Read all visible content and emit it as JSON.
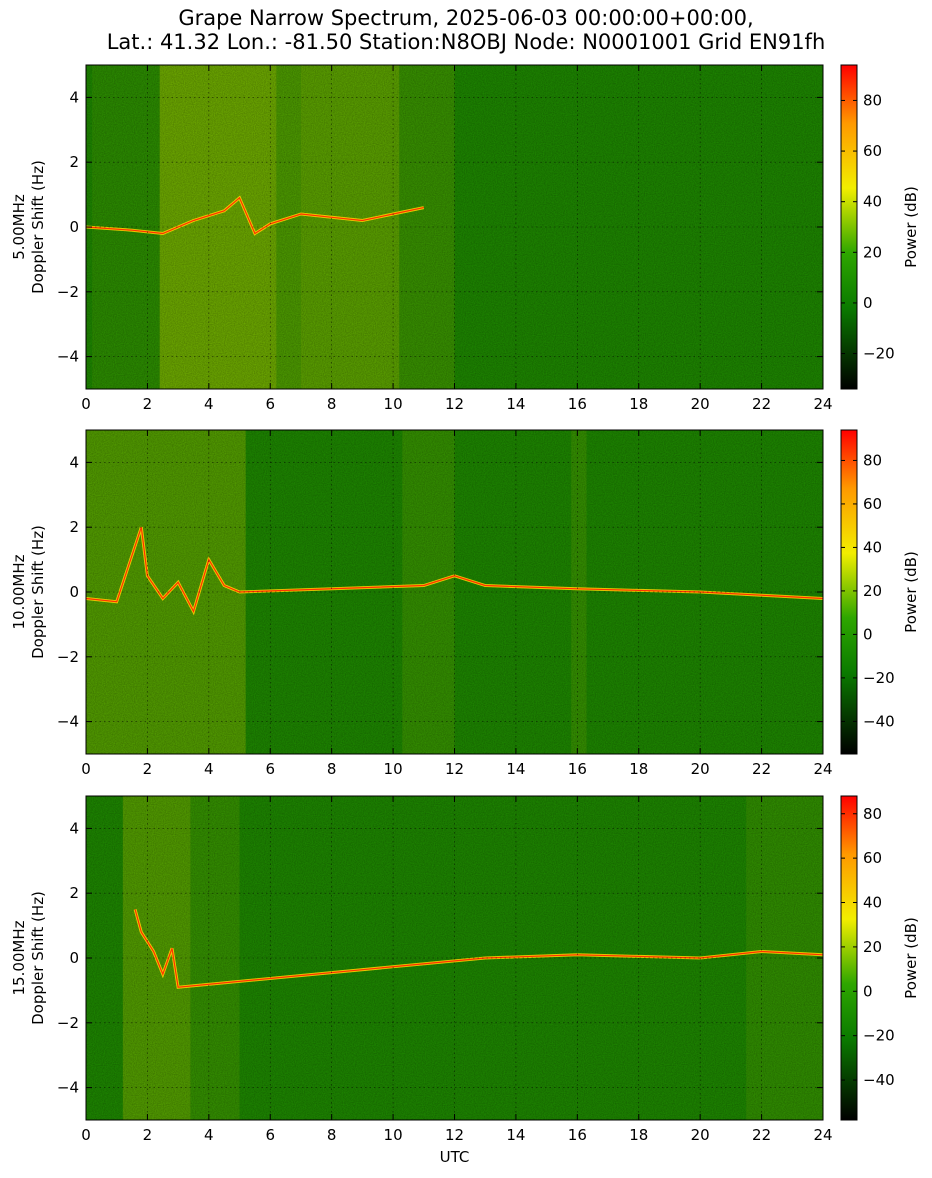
{
  "title_line1": "Grape Narrow Spectrum, 2025-06-03 00:00:00+00:00,",
  "title_line2": "Lat.: 41.32 Lon.: -81.50 Station:N8OBJ Node: N0001001 Grid EN91fh",
  "chart_data": [
    {
      "type": "heatmap",
      "ylabel_top": "5.00MHz",
      "ylabel": "Doppler Shift (Hz)",
      "xlabel": "",
      "x_ticks": [
        0,
        2,
        4,
        6,
        8,
        10,
        12,
        14,
        16,
        18,
        20,
        22,
        24
      ],
      "y_ticks": [
        4,
        2,
        0,
        -2,
        -4
      ],
      "xlim": [
        0,
        24
      ],
      "ylim": [
        -5,
        5
      ],
      "grid": true,
      "colorbar": {
        "label": "Power (dB)",
        "range": [
          -34,
          94
        ],
        "ticks": [
          80,
          60,
          40,
          20,
          0,
          -20
        ]
      },
      "doppler_trace": [
        [
          0.0,
          0.0
        ],
        [
          1.5,
          -0.1
        ],
        [
          2.5,
          -0.2
        ],
        [
          3.5,
          0.2
        ],
        [
          4.5,
          0.5
        ],
        [
          5.0,
          0.9
        ],
        [
          5.5,
          -0.2
        ],
        [
          6.0,
          0.1
        ],
        [
          7.0,
          0.4
        ],
        [
          8.0,
          0.3
        ],
        [
          9.0,
          0.2
        ],
        [
          10.0,
          0.4
        ],
        [
          11.0,
          0.6
        ]
      ]
    },
    {
      "type": "heatmap",
      "ylabel_top": "10.00MHz",
      "ylabel": "Doppler Shift (Hz)",
      "xlabel": "",
      "x_ticks": [
        0,
        2,
        4,
        6,
        8,
        10,
        12,
        14,
        16,
        18,
        20,
        22,
        24
      ],
      "y_ticks": [
        4,
        2,
        0,
        -2,
        -4
      ],
      "xlim": [
        0,
        24
      ],
      "ylim": [
        -5,
        5
      ],
      "grid": true,
      "colorbar": {
        "label": "Power (dB)",
        "range": [
          -55,
          94
        ],
        "ticks": [
          80,
          60,
          40,
          20,
          0,
          -20,
          -40
        ]
      },
      "doppler_trace": [
        [
          0.0,
          -0.2
        ],
        [
          1.0,
          -0.3
        ],
        [
          1.8,
          2.0
        ],
        [
          2.0,
          0.5
        ],
        [
          2.5,
          -0.2
        ],
        [
          3.0,
          0.3
        ],
        [
          3.5,
          -0.6
        ],
        [
          4.0,
          1.0
        ],
        [
          4.5,
          0.2
        ],
        [
          5.0,
          0.0
        ],
        [
          11.0,
          0.2
        ],
        [
          12.0,
          0.5
        ],
        [
          13.0,
          0.2
        ],
        [
          16.0,
          0.1
        ],
        [
          20.0,
          0.0
        ],
        [
          22.0,
          -0.1
        ],
        [
          24.0,
          -0.2
        ]
      ]
    },
    {
      "type": "heatmap",
      "ylabel_top": "15.00MHz",
      "ylabel": "Doppler Shift (Hz)",
      "xlabel": "UTC",
      "x_ticks": [
        0,
        2,
        4,
        6,
        8,
        10,
        12,
        14,
        16,
        18,
        20,
        22,
        24
      ],
      "y_ticks": [
        4,
        2,
        0,
        -2,
        -4
      ],
      "xlim": [
        0,
        24
      ],
      "ylim": [
        -5,
        5
      ],
      "grid": true,
      "colorbar": {
        "label": "Power (dB)",
        "range": [
          -58,
          88
        ],
        "ticks": [
          80,
          60,
          40,
          20,
          0,
          -20,
          -40
        ]
      },
      "doppler_trace": [
        [
          1.6,
          1.5
        ],
        [
          1.8,
          0.8
        ],
        [
          2.2,
          0.2
        ],
        [
          2.5,
          -0.5
        ],
        [
          2.8,
          0.3
        ],
        [
          3.0,
          -0.9
        ],
        [
          13.0,
          0.0
        ],
        [
          16.0,
          0.1
        ],
        [
          20.0,
          0.0
        ],
        [
          22.0,
          0.2
        ],
        [
          24.0,
          0.1
        ]
      ]
    }
  ]
}
